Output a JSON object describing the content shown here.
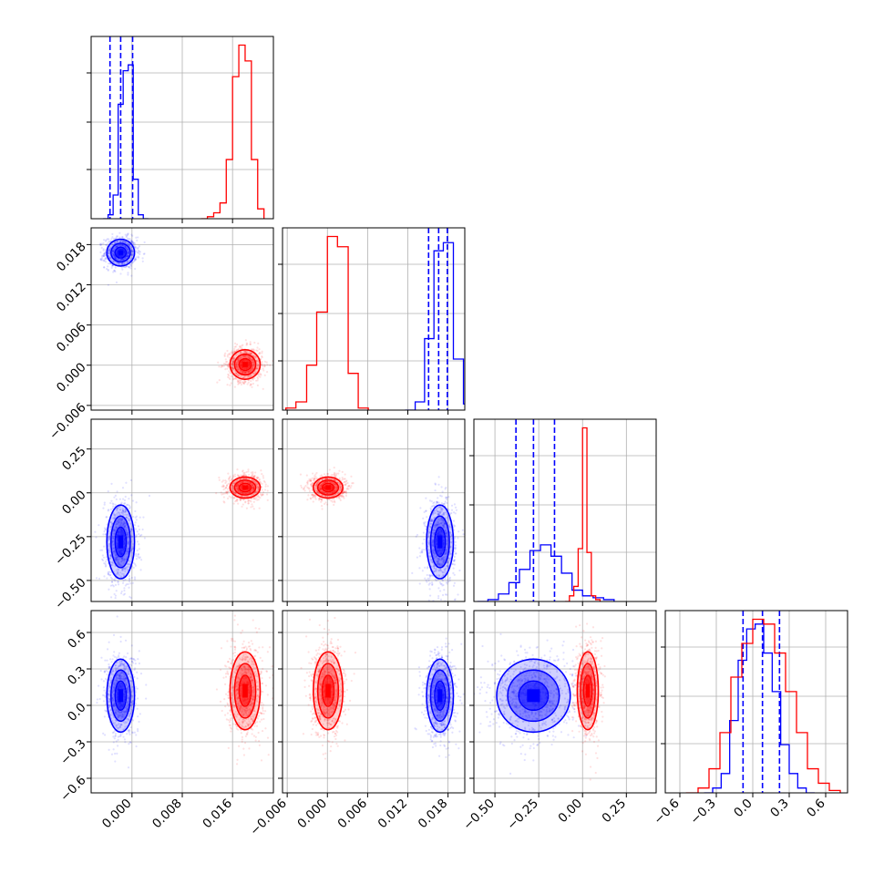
{
  "chart_data": {
    "type": "corner",
    "params": [
      {
        "ticks": [
          0.0,
          0.008,
          0.016
        ],
        "tick_labels": [
          "0.000",
          "0.008",
          "0.016"
        ],
        "range": [
          -0.0065,
          0.0225
        ]
      },
      {
        "ticks": [
          -0.006,
          0.0,
          0.006,
          0.012,
          0.018
        ],
        "tick_labels": [
          "−0.006",
          "0.000",
          "0.006",
          "0.012",
          "0.018"
        ],
        "range": [
          -0.0067,
          0.0205
        ]
      },
      {
        "ticks": [
          -0.5,
          -0.25,
          0.0,
          0.25
        ],
        "tick_labels": [
          "−0.50",
          "−0.25",
          "0.00",
          "0.25"
        ],
        "range": [
          -0.62,
          0.42
        ]
      },
      {
        "ticks": [
          -0.6,
          -0.3,
          0.0,
          0.3,
          0.6
        ],
        "tick_labels": [
          "−0.6",
          "−0.3",
          "0.0",
          "0.3",
          "0.6"
        ],
        "range": [
          -0.72,
          0.78
        ]
      }
    ],
    "series": [
      {
        "color": "#0000ff",
        "means": [
          -0.0018,
          0.0168,
          -0.28,
          0.08
        ],
        "stds": [
          0.0011,
          0.001,
          0.105,
          0.15
        ],
        "quantiles": [
          [
            -0.0035,
            -0.0018,
            0.0001
          ],
          [
            0.0151,
            0.0166,
            0.0179
          ],
          [
            -0.38,
            -0.28,
            -0.16
          ],
          [
            -0.08,
            0.08,
            0.22
          ]
        ],
        "hist": [
          [
            0,
            2,
            12,
            58,
            75,
            78,
            20,
            2,
            0
          ],
          [
            0,
            4,
            35,
            78,
            82,
            25,
            3
          ],
          [
            0,
            1,
            4,
            10,
            17,
            27,
            30,
            24,
            15,
            6,
            3,
            2,
            1
          ],
          [
            0,
            2,
            8,
            30,
            55,
            68,
            70,
            58,
            42,
            20,
            8,
            2,
            0
          ]
        ],
        "hist_edges": [
          [
            -0.0046,
            -0.0038,
            -0.003,
            -0.0022,
            -0.0014,
            -0.0006,
            0.0002,
            0.001,
            0.0018,
            0.0026
          ],
          [
            0.0116,
            0.0131,
            0.0145,
            0.0159,
            0.0173,
            0.0188,
            0.0203,
            0.0218
          ],
          [
            -0.6,
            -0.54,
            -0.48,
            -0.42,
            -0.36,
            -0.3,
            -0.24,
            -0.18,
            -0.12,
            -0.06,
            0.0,
            0.06,
            0.12,
            0.18
          ],
          [
            -0.4,
            -0.33,
            -0.26,
            -0.19,
            -0.12,
            -0.05,
            0.02,
            0.09,
            0.16,
            0.23,
            0.3,
            0.37,
            0.44,
            0.51
          ]
        ]
      },
      {
        "color": "#ff0000",
        "means": [
          0.018,
          0.0001,
          0.03,
          0.12
        ],
        "stds": [
          0.0012,
          0.0011,
          0.03,
          0.16
        ],
        "quantiles": null,
        "hist": [
          [
            0,
            1,
            3,
            8,
            30,
            72,
            88,
            80,
            30,
            5
          ],
          [
            1,
            4,
            22,
            48,
            85,
            80,
            18,
            1
          ],
          [
            0,
            3,
            8,
            28,
            92,
            26,
            3,
            1
          ],
          [
            0,
            2,
            10,
            25,
            48,
            62,
            72,
            70,
            58,
            42,
            25,
            10,
            4,
            1
          ]
        ],
        "hist_edges": [
          [
            0.011,
            0.012,
            0.013,
            0.014,
            0.015,
            0.016,
            0.017,
            0.018,
            0.019,
            0.02,
            0.021
          ],
          [
            -0.0062,
            -0.0047,
            -0.0031,
            -0.0016,
            0.0,
            0.0015,
            0.0031,
            0.0046,
            0.0061
          ],
          [
            -0.1,
            -0.075,
            -0.05,
            -0.025,
            0.0,
            0.025,
            0.05,
            0.075,
            0.1
          ],
          [
            -0.55,
            -0.45,
            -0.36,
            -0.27,
            -0.18,
            -0.09,
            0.0,
            0.09,
            0.18,
            0.27,
            0.36,
            0.45,
            0.54,
            0.63,
            0.72
          ]
        ]
      }
    ],
    "grid": true,
    "legend": "none",
    "title": "",
    "axis_labels": [
      "",
      "",
      "",
      ""
    ]
  }
}
